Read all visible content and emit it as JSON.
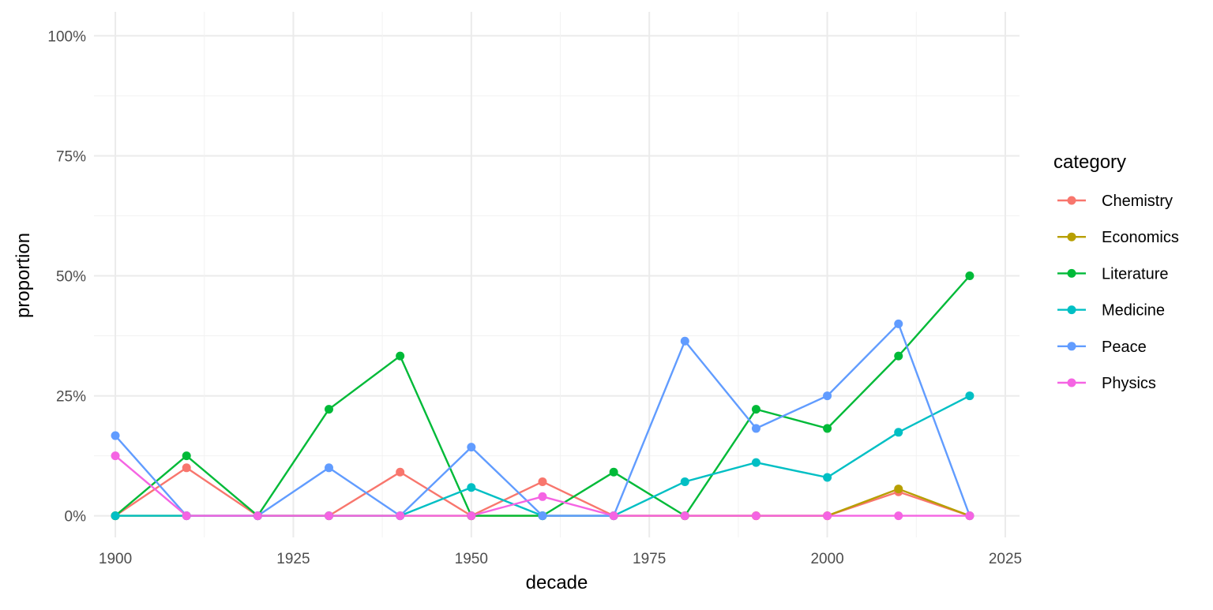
{
  "chart_data": {
    "type": "line",
    "title": "",
    "xlabel": "decade",
    "ylabel": "proportion",
    "x_ticks": [
      "1900",
      "1925",
      "1950",
      "1975",
      "2000",
      "2025"
    ],
    "y_ticks": [
      "0%",
      "25%",
      "50%",
      "75%",
      "100%"
    ],
    "xlim": [
      1897,
      2027
    ],
    "ylim": [
      -0.045,
      1.05
    ],
    "grid": true,
    "legend": {
      "title": "category",
      "position": "right"
    },
    "x": [
      1900,
      1910,
      1920,
      1930,
      1940,
      1950,
      1960,
      1970,
      1980,
      1990,
      2000,
      2010,
      2020
    ],
    "series": [
      {
        "name": "Chemistry",
        "color": "#F8766D",
        "values": [
          0,
          0.1,
          0,
          0,
          0.091,
          0,
          0.071,
          0,
          0,
          0,
          0,
          0.05,
          0
        ]
      },
      {
        "name": "Economics",
        "color": "#B79F00",
        "values": [
          0,
          0,
          0,
          0,
          0,
          0,
          0,
          0,
          0,
          0,
          0,
          0.056,
          0
        ]
      },
      {
        "name": "Literature",
        "color": "#00BA38",
        "values": [
          0,
          0.125,
          0,
          0.222,
          0.333,
          0,
          0,
          0.091,
          0,
          0.222,
          0.182,
          0.333,
          0.5
        ]
      },
      {
        "name": "Medicine",
        "color": "#00BFC4",
        "values": [
          0,
          0,
          0,
          0,
          0,
          0.059,
          0,
          0,
          0.071,
          0.111,
          0.08,
          0.174,
          0.25
        ]
      },
      {
        "name": "Peace",
        "color": "#619CFF",
        "values": [
          0.167,
          0,
          0,
          0.1,
          0,
          0.143,
          0,
          0,
          0.364,
          0.182,
          0.25,
          0.4,
          0
        ]
      },
      {
        "name": "Physics",
        "color": "#F564E3",
        "values": [
          0.125,
          0,
          0,
          0,
          0,
          0,
          0.04,
          0,
          0,
          0,
          0,
          0,
          0
        ]
      }
    ]
  }
}
